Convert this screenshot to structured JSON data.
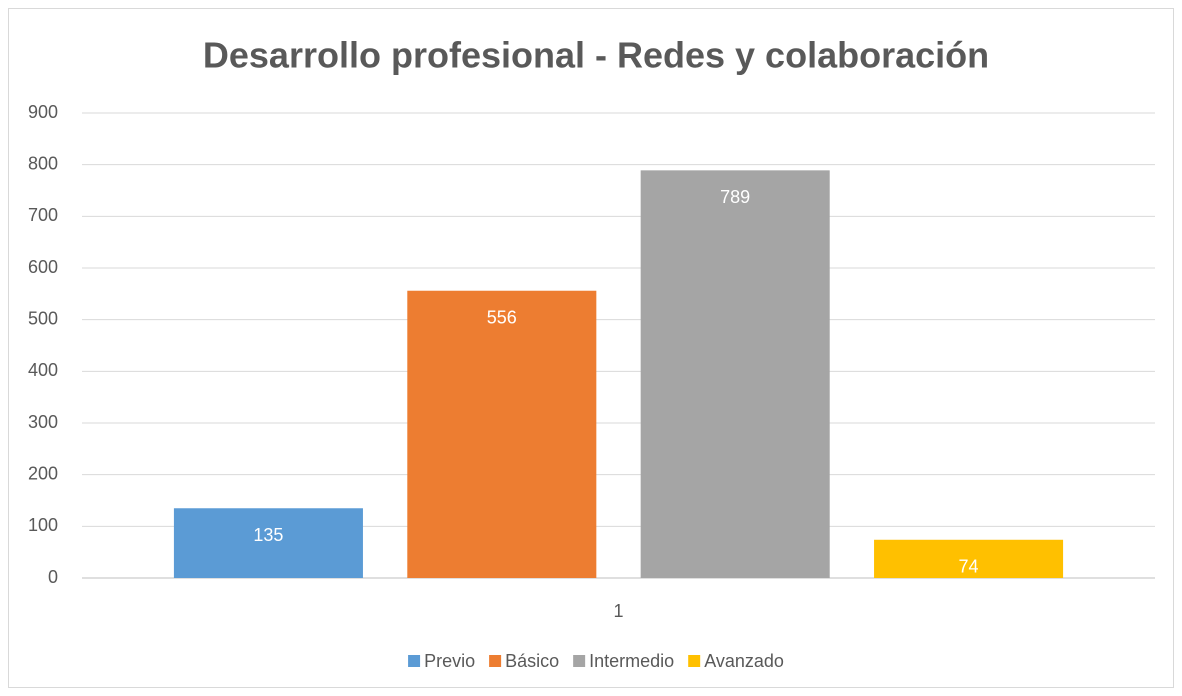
{
  "chart_data": {
    "type": "bar",
    "title": "Desarrollo profesional - Redes y colaboración",
    "categories": [
      "1"
    ],
    "series": [
      {
        "name": "Previo",
        "color": "#5b9bd5",
        "values": [
          135
        ]
      },
      {
        "name": "Básico",
        "color": "#ed7d31",
        "values": [
          556
        ]
      },
      {
        "name": "Intermedio",
        "color": "#a5a5a5",
        "values": [
          789
        ]
      },
      {
        "name": "Avanzado",
        "color": "#ffc000",
        "values": [
          74
        ]
      }
    ],
    "ylim": [
      0,
      900
    ],
    "yticks": [
      0,
      100,
      200,
      300,
      400,
      500,
      600,
      700,
      800,
      900
    ],
    "grid": true,
    "legend": "bottom"
  }
}
